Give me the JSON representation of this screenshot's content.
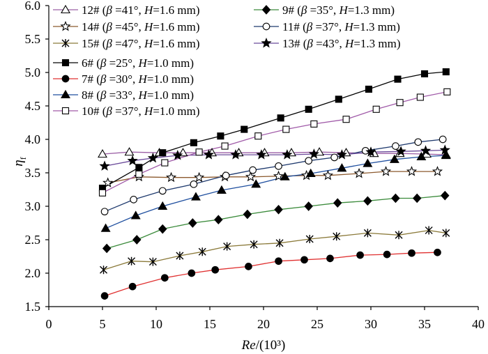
{
  "chart_data": {
    "type": "line",
    "xlabel": "Re/(10³)",
    "ylabel": "ηf",
    "xlim": [
      0,
      40
    ],
    "ylim": [
      1.5,
      6.0
    ],
    "xticks": [
      "0",
      "5",
      "10",
      "15",
      "20",
      "25",
      "30",
      "35",
      "40"
    ],
    "yticks": [
      "1.5",
      "2.0",
      "2.5",
      "3.0",
      "3.5",
      "4.0",
      "4.5",
      "5.0",
      "5.5",
      "6.0"
    ],
    "grid": false,
    "legend": "top-left",
    "series": [
      {
        "name": "12# (β =41°, H=1.6 mm)",
        "marker": "open-triangle",
        "color": "#9b5fa5",
        "x": [
          5.0,
          7.5,
          10.3,
          12.5,
          15.2,
          17.7,
          20.1,
          22.6,
          25.2,
          27.7,
          30.3,
          32.7,
          35.2,
          37.0
        ],
        "y": [
          3.78,
          3.81,
          3.8,
          3.8,
          3.8,
          3.8,
          3.8,
          3.8,
          3.81,
          3.8,
          3.79,
          3.79,
          3.78,
          3.77
        ]
      },
      {
        "name": "9# (β =35°, H=1.3 mm)",
        "marker": "filled-diamond",
        "color": "#3a8a3a",
        "x": [
          5.4,
          8.2,
          10.6,
          13.4,
          15.8,
          18.5,
          21.4,
          24.2,
          26.9,
          29.7,
          32.3,
          34.3,
          36.9
        ],
        "y": [
          2.37,
          2.5,
          2.66,
          2.75,
          2.8,
          2.88,
          2.95,
          3.0,
          3.05,
          3.08,
          3.12,
          3.12,
          3.16
        ]
      },
      {
        "name": "14# (β =45°, H=1.6 mm)",
        "marker": "open-star",
        "color": "#8c5a2e",
        "x": [
          5.5,
          8.4,
          11.4,
          14.0,
          16.4,
          18.8,
          21.4,
          24.0,
          26.0,
          28.9,
          31.4,
          33.8,
          36.2
        ],
        "y": [
          3.35,
          3.44,
          3.43,
          3.43,
          3.44,
          3.44,
          3.45,
          3.46,
          3.46,
          3.49,
          3.52,
          3.52,
          3.52
        ]
      },
      {
        "name": "11# (β =37°, H=1.3 mm)",
        "marker": "open-circle",
        "color": "#1f3a6e",
        "x": [
          5.2,
          7.9,
          10.6,
          13.5,
          16.5,
          19.0,
          21.4,
          24.2,
          26.6,
          29.5,
          32.3,
          34.4,
          36.7
        ],
        "y": [
          2.92,
          3.1,
          3.23,
          3.33,
          3.46,
          3.54,
          3.6,
          3.68,
          3.73,
          3.83,
          3.9,
          3.96,
          4.0
        ]
      },
      {
        "name": "15# (β =47°, H=1.6 mm)",
        "marker": "asterisk",
        "color": "#8b7a3a",
        "x": [
          5.1,
          7.7,
          9.7,
          12.2,
          14.3,
          16.6,
          19.1,
          21.5,
          24.3,
          26.8,
          29.7,
          32.6,
          35.4,
          37.0
        ],
        "y": [
          2.05,
          2.18,
          2.17,
          2.26,
          2.32,
          2.4,
          2.43,
          2.45,
          2.51,
          2.55,
          2.6,
          2.57,
          2.64,
          2.6
        ]
      },
      {
        "name": "13# (β =43°, H=1.3 mm)",
        "marker": "filled-star",
        "color": "#6b4a9a",
        "x": [
          5.2,
          7.8,
          9.7,
          12.0,
          14.9,
          17.4,
          19.8,
          22.2,
          24.7,
          27.3,
          30.0,
          32.8,
          35.1,
          36.9
        ],
        "y": [
          3.6,
          3.68,
          3.72,
          3.76,
          3.77,
          3.77,
          3.77,
          3.77,
          3.78,
          3.77,
          3.81,
          3.82,
          3.83,
          3.84
        ]
      },
      {
        "name": "6# (β =25°, H=1.0 mm)",
        "marker": "filled-square",
        "color": "#000000",
        "x": [
          5.0,
          8.4,
          10.6,
          13.5,
          16.0,
          18.2,
          21.6,
          24.2,
          27.0,
          29.8,
          32.5,
          35.0,
          37.0
        ],
        "y": [
          3.27,
          3.58,
          3.8,
          3.95,
          4.05,
          4.15,
          4.32,
          4.45,
          4.6,
          4.75,
          4.9,
          4.98,
          5.01
        ]
      },
      {
        "name": "7# (β =30°, H=1.0 mm)",
        "marker": "filled-circle",
        "color": "#e03030",
        "x": [
          5.2,
          7.8,
          10.8,
          13.3,
          15.5,
          18.6,
          21.4,
          23.8,
          26.2,
          29.0,
          31.5,
          33.8,
          36.2
        ],
        "y": [
          1.66,
          1.8,
          1.93,
          2.0,
          2.05,
          2.1,
          2.18,
          2.2,
          2.22,
          2.27,
          2.28,
          2.3,
          2.31
        ]
      },
      {
        "name": "8# (β =33°, H=1.0 mm)",
        "marker": "filled-triangle",
        "color": "#1f4f9f",
        "x": [
          5.3,
          8.1,
          10.6,
          13.7,
          16.1,
          19.3,
          22.0,
          24.4,
          27.3,
          29.7,
          32.2,
          34.7,
          37.0
        ],
        "y": [
          2.67,
          2.86,
          3.0,
          3.14,
          3.24,
          3.33,
          3.44,
          3.49,
          3.57,
          3.64,
          3.7,
          3.74,
          3.76
        ]
      },
      {
        "name": "10# (β =37°, H=1.0 mm)",
        "marker": "open-square",
        "color": "#a05aa8",
        "x": [
          5.0,
          8.4,
          10.8,
          14.0,
          16.4,
          19.5,
          22.1,
          24.7,
          27.7,
          30.5,
          32.7,
          34.6,
          37.1
        ],
        "y": [
          3.2,
          3.48,
          3.65,
          3.81,
          3.9,
          4.05,
          4.15,
          4.23,
          4.3,
          4.45,
          4.55,
          4.63,
          4.71
        ]
      }
    ]
  }
}
